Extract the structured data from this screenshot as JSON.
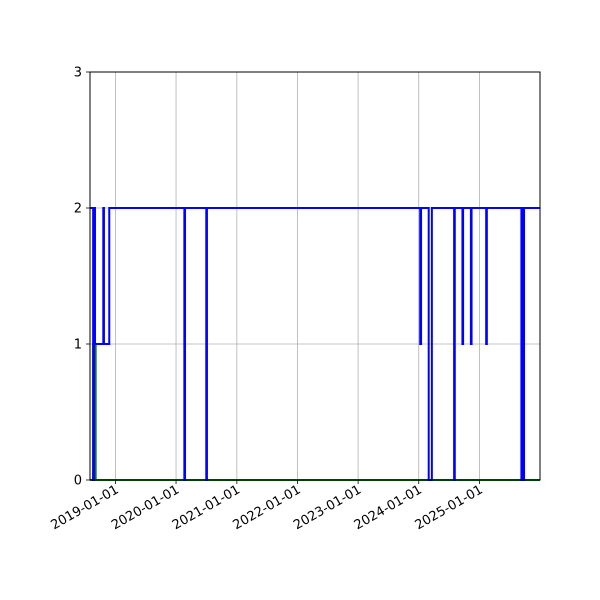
{
  "chart_data": {
    "type": "line",
    "title": "",
    "xlabel": "",
    "ylabel": "",
    "x_type": "date",
    "xlim": [
      "2018-08-01",
      "2025-12-31"
    ],
    "ylim": [
      0,
      3
    ],
    "x_ticks": [
      "2019-01-01",
      "2020-01-01",
      "2021-01-01",
      "2022-01-01",
      "2023-01-01",
      "2024-01-01",
      "2025-01-01"
    ],
    "y_ticks": [
      0,
      1,
      2,
      3
    ],
    "grid": true,
    "legend": "none",
    "step": true,
    "series": [
      {
        "color": "#008000",
        "points": [
          [
            "2018-08-01",
            0
          ],
          [
            "2018-08-20",
            0
          ],
          [
            "2018-08-20",
            1
          ],
          [
            "2018-08-22",
            1
          ],
          [
            "2018-08-22",
            0
          ],
          [
            "2018-08-25",
            0
          ],
          [
            "2018-08-25",
            1
          ],
          [
            "2018-08-27",
            1
          ],
          [
            "2018-08-27",
            0
          ],
          [
            "2018-08-29",
            0
          ],
          [
            "2018-08-29",
            1
          ],
          [
            "2018-08-31",
            1
          ],
          [
            "2018-08-31",
            0
          ],
          [
            "2018-09-02",
            0
          ],
          [
            "2018-09-02",
            1
          ],
          [
            "2018-09-04",
            1
          ],
          [
            "2018-09-04",
            0
          ],
          [
            "2025-12-31",
            0
          ]
        ]
      },
      {
        "color": "#0000ff",
        "points": [
          [
            "2018-08-01",
            2
          ],
          [
            "2018-08-20",
            2
          ],
          [
            "2018-08-20",
            0
          ],
          [
            "2018-08-25",
            0
          ],
          [
            "2018-08-25",
            2
          ],
          [
            "2018-08-31",
            2
          ],
          [
            "2018-08-31",
            1
          ],
          [
            "2018-10-20",
            1
          ],
          [
            "2018-10-20",
            2
          ],
          [
            "2018-10-24",
            2
          ],
          [
            "2018-10-24",
            1
          ],
          [
            "2018-11-25",
            1
          ],
          [
            "2018-11-25",
            2
          ],
          [
            "2020-02-20",
            2
          ],
          [
            "2020-02-20",
            0
          ],
          [
            "2020-02-24",
            0
          ],
          [
            "2020-02-24",
            2
          ],
          [
            "2020-07-01",
            2
          ],
          [
            "2020-07-01",
            0
          ],
          [
            "2020-07-05",
            0
          ],
          [
            "2020-07-05",
            2
          ],
          [
            "2024-01-10",
            2
          ],
          [
            "2024-01-10",
            1
          ],
          [
            "2024-01-15",
            1
          ],
          [
            "2024-01-15",
            2
          ],
          [
            "2024-03-01",
            2
          ],
          [
            "2024-03-01",
            0
          ],
          [
            "2024-03-20",
            0
          ],
          [
            "2024-03-20",
            2
          ],
          [
            "2024-08-01",
            2
          ],
          [
            "2024-08-01",
            0
          ],
          [
            "2024-08-05",
            0
          ],
          [
            "2024-08-05",
            2
          ],
          [
            "2024-09-20",
            2
          ],
          [
            "2024-09-20",
            1
          ],
          [
            "2024-09-24",
            1
          ],
          [
            "2024-09-24",
            2
          ],
          [
            "2024-11-10",
            2
          ],
          [
            "2024-11-10",
            1
          ],
          [
            "2024-11-14",
            1
          ],
          [
            "2024-11-14",
            2
          ],
          [
            "2025-02-10",
            2
          ],
          [
            "2025-02-10",
            1
          ],
          [
            "2025-02-14",
            1
          ],
          [
            "2025-02-14",
            2
          ],
          [
            "2025-09-10",
            2
          ],
          [
            "2025-09-10",
            0
          ],
          [
            "2025-09-13",
            0
          ],
          [
            "2025-09-13",
            2
          ],
          [
            "2025-09-17",
            2
          ],
          [
            "2025-09-17",
            0
          ],
          [
            "2025-09-20",
            0
          ],
          [
            "2025-09-20",
            2
          ],
          [
            "2025-09-23",
            2
          ],
          [
            "2025-09-23",
            0
          ],
          [
            "2025-09-26",
            0
          ],
          [
            "2025-09-26",
            2
          ],
          [
            "2025-12-31",
            2
          ]
        ]
      }
    ]
  }
}
